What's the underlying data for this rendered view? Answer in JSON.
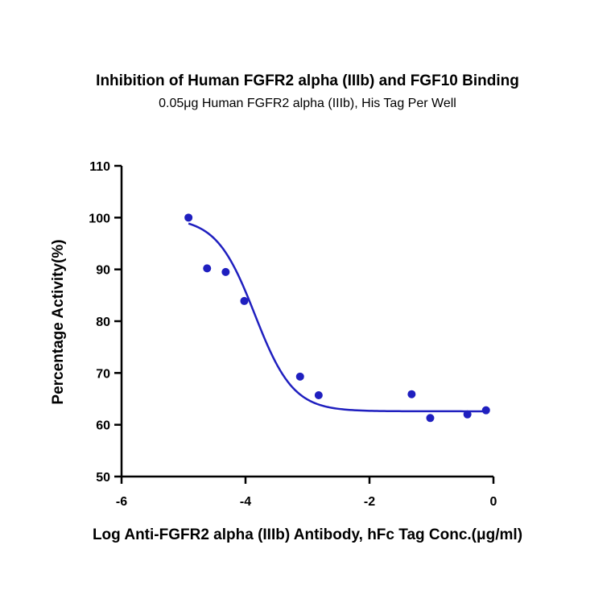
{
  "chart_data": {
    "type": "scatter",
    "title": "Inhibition of Human FGFR2 alpha (IIIb) and FGF10 Binding",
    "subtitle": "0.05μg Human FGFR2 alpha (IIIb), His Tag Per Well",
    "xlabel": "Log Anti-FGFR2 alpha (IIIb) Antibody, hFc Tag Conc.(μg/ml)",
    "ylabel": "Percentage Activity(%)",
    "xlim": [
      -6,
      0
    ],
    "ylim": [
      50,
      110
    ],
    "x_ticks": [
      -6,
      -4,
      -2,
      0
    ],
    "y_ticks": [
      50,
      60,
      70,
      80,
      90,
      100,
      110
    ],
    "points": [
      {
        "x": -4.92,
        "y": 100.0
      },
      {
        "x": -4.62,
        "y": 90.2
      },
      {
        "x": -4.32,
        "y": 89.5
      },
      {
        "x": -4.02,
        "y": 83.9
      },
      {
        "x": -3.12,
        "y": 69.3
      },
      {
        "x": -2.82,
        "y": 65.7
      },
      {
        "x": -1.32,
        "y": 65.9
      },
      {
        "x": -1.02,
        "y": 61.3
      },
      {
        "x": -0.42,
        "y": 62.0
      },
      {
        "x": -0.12,
        "y": 62.8
      }
    ],
    "fit": {
      "bottom": 62.6,
      "top": 100.0,
      "log_ic50": -3.85,
      "hill_slope": -1.4
    },
    "colors": {
      "series": "#1f1fbf",
      "axis": "#000000"
    },
    "grid": false
  }
}
